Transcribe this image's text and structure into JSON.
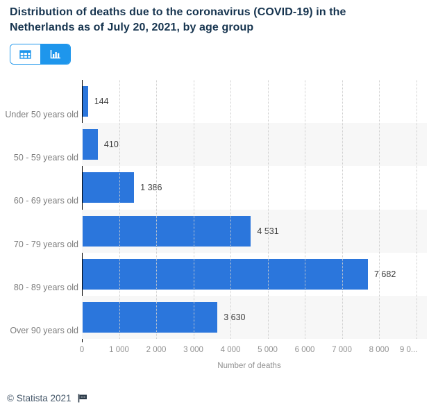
{
  "title": "Distribution of deaths due to the coronavirus (COVID-19) in the Netherlands as of July 20, 2021, by age group",
  "toolbar": {
    "table_view_icon": "table-grid-icon",
    "chart_view_icon": "bar-chart-icon",
    "active_view": "chart"
  },
  "chart_data": {
    "type": "bar",
    "orientation": "horizontal",
    "categories": [
      "Under 50 years old",
      "50 - 59 years old",
      "60 - 69 years old",
      "70 - 79 years old",
      "80 - 89 years old",
      "Over 90 years old"
    ],
    "values": [
      144,
      410,
      1386,
      4531,
      7682,
      3630
    ],
    "value_labels": [
      "144",
      "410",
      "1 386",
      "4 531",
      "7 682",
      "3 630"
    ],
    "title": "Distribution of deaths due to the coronavirus (COVID-19) in the Netherlands as of July 20, 2021, by age group",
    "xlabel": "Number of deaths",
    "ylabel": "",
    "xlim": [
      0,
      9000
    ],
    "x_ticks": [
      "0",
      "1 000",
      "2 000",
      "3 000",
      "4 000",
      "5 000",
      "6 000",
      "7 000",
      "8 000",
      "9 0..."
    ],
    "grid": "vertical-dotted",
    "legend": "none",
    "bar_color": "#2b76dc",
    "band_alt_color": "#f7f7f7"
  },
  "footer": {
    "copyright": "© Statista 2021",
    "flag_icon": "report-flag-icon"
  },
  "colors": {
    "accent_blue": "#1e96ec",
    "bar_blue": "#2b76dc",
    "title_navy": "#16344f",
    "label_gray": "#7d7d7d",
    "tick_gray": "#909090",
    "footer_slate": "#46586a"
  }
}
